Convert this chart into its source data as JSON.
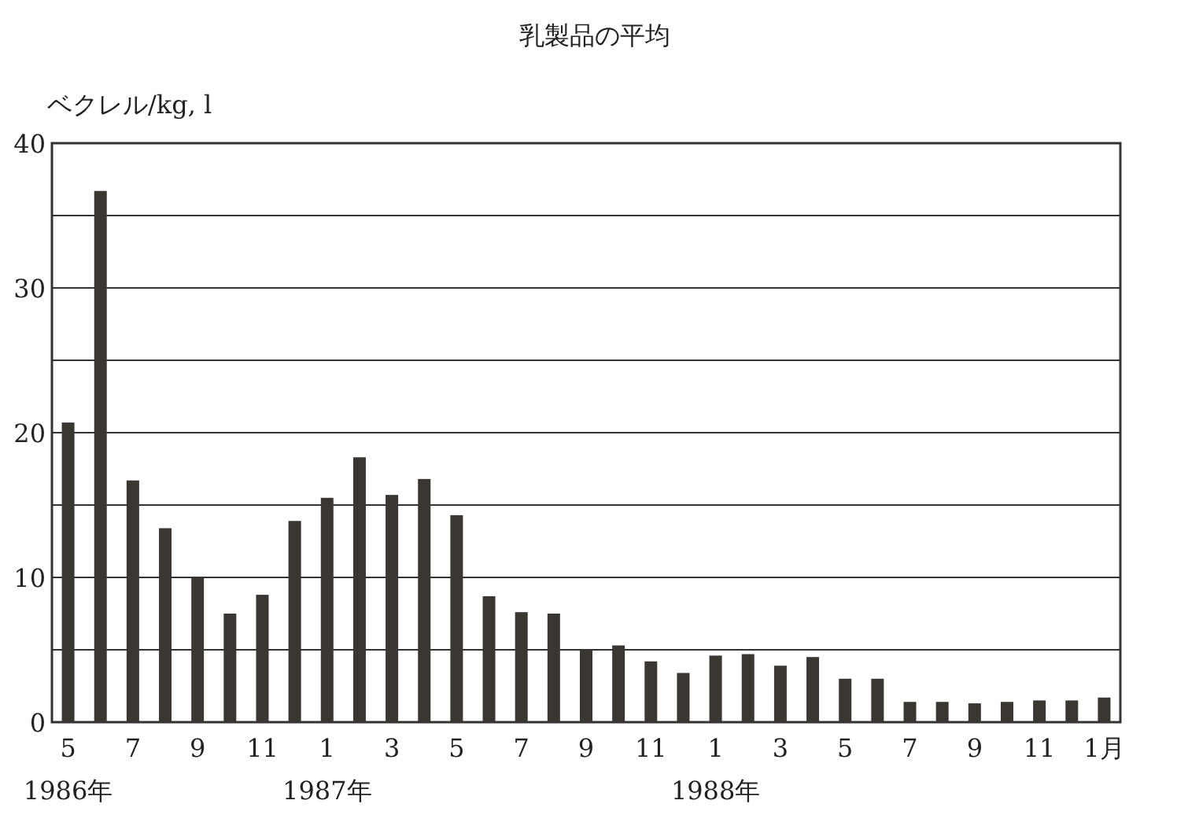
{
  "chart_data": {
    "type": "bar",
    "title": "乳製品の平均",
    "ylabel": "ベクレル/kg, l",
    "categories": [
      "5\n1986年",
      null,
      "7",
      null,
      "9",
      null,
      "11",
      null,
      "1\n1987年",
      null,
      "3",
      null,
      "5",
      null,
      "7",
      null,
      "9",
      null,
      "11",
      null,
      "1\n1988年",
      null,
      "3",
      null,
      "5",
      null,
      "7",
      null,
      "9",
      null,
      "11",
      null,
      "1月"
    ],
    "values": [
      20.7,
      36.7,
      16.7,
      13.4,
      10.0,
      7.5,
      8.8,
      13.9,
      15.5,
      18.3,
      15.7,
      16.8,
      14.3,
      8.7,
      7.6,
      7.5,
      5.0,
      5.3,
      4.2,
      3.4,
      4.6,
      4.7,
      3.9,
      4.5,
      3.0,
      3.0,
      1.4,
      1.4,
      1.3,
      1.4,
      1.5,
      1.5,
      1.7
    ],
    "color": "#3a3632",
    "ylim": [
      0,
      40
    ],
    "yticks": [
      0,
      {
        "value": 5,
        "label": null
      },
      10,
      {
        "value": 15,
        "label": null
      },
      20,
      {
        "value": 25,
        "label": null
      },
      30,
      {
        "value": 35,
        "label": null
      },
      40
    ],
    "grid": "y"
  }
}
